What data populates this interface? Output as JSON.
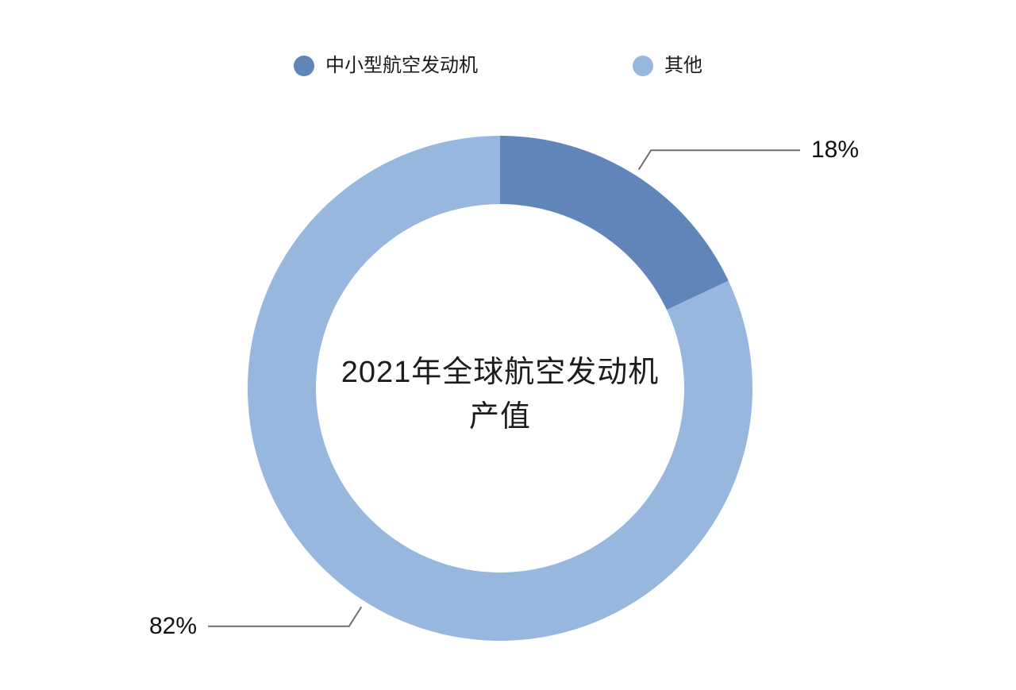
{
  "chart_data": {
    "type": "pie",
    "subtype": "donut",
    "title": "2021年全球航空发动机产值",
    "categories": [
      "中小型航空发动机",
      "其他"
    ],
    "values": [
      18,
      82
    ],
    "unit": "%",
    "slice_labels": [
      "18%",
      "82%"
    ],
    "colors": [
      "#5f85b9",
      "#98b7de"
    ],
    "start_angle": "top",
    "direction": "clockwise",
    "legend_position": "top",
    "donut_hole": true
  },
  "legend": {
    "items": [
      {
        "label": "中小型航空发动机",
        "color": "#5f85b9"
      },
      {
        "label": "其他",
        "color": "#98b7de"
      }
    ]
  },
  "center_title": {
    "line1": "2021年全球航空发动机",
    "line2": "产值"
  },
  "style": {
    "leader_line_color": "#6e6e6e",
    "text_color": "#1a1a1a",
    "background": "#ffffff"
  }
}
